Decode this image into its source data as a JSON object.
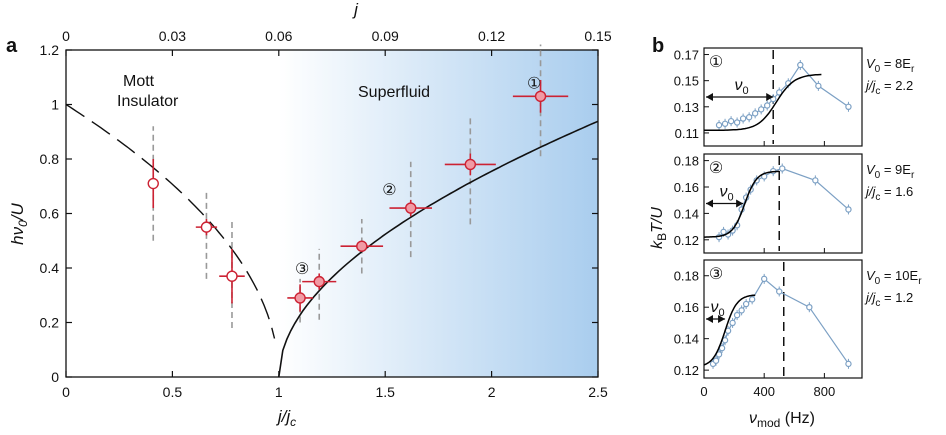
{
  "panel_a": {
    "letter": "a",
    "region_left_line1": "Mott",
    "region_left_line2": "Insulator",
    "region_right": "Superfluid",
    "chart_data": {
      "type": "scatter",
      "xlabel": "j/j",
      "xlabel_sub": "c",
      "ylabel": "hν",
      "ylabel_sub": "0",
      "ylabel_tail": "/U",
      "top_axis_label": "j",
      "xlim": [
        0,
        2.5
      ],
      "ylim": [
        0,
        1.2
      ],
      "x_ticks": [
        "0",
        "0.5",
        "1",
        "1.5",
        "2",
        "2.5"
      ],
      "y_ticks": [
        "0",
        "0.2",
        "0.4",
        "0.6",
        "0.8",
        "1",
        "1.2"
      ],
      "top_ticks": [
        "0",
        "0.03",
        "0.06",
        "0.09",
        "0.12",
        "0.15"
      ],
      "top_xlim": [
        0,
        0.15
      ],
      "mott_points": [
        {
          "x": 0.41,
          "y": 0.71,
          "xerr": 0.02,
          "yerr": 0.09,
          "range": [
            0.5,
            0.92
          ]
        },
        {
          "x": 0.66,
          "y": 0.55,
          "xerr": 0.05,
          "yerr": 0.03,
          "range": [
            0.36,
            0.69
          ]
        },
        {
          "x": 0.78,
          "y": 0.37,
          "xerr": 0.06,
          "yerr": 0.1,
          "range": [
            0.18,
            0.57
          ]
        }
      ],
      "superfluid_points": [
        {
          "x": 1.1,
          "y": 0.29,
          "xerr": 0.06,
          "yerr": 0.05,
          "range": [
            0.2,
            0.36
          ],
          "label": "③",
          "lx": 1.11,
          "ly": 0.4
        },
        {
          "x": 1.19,
          "y": 0.35,
          "xerr": 0.08,
          "yerr": 0.03,
          "range": [
            0.21,
            0.47
          ]
        },
        {
          "x": 1.39,
          "y": 0.48,
          "xerr": 0.1,
          "yerr": 0.02,
          "range": [
            0.38,
            0.58
          ]
        },
        {
          "x": 1.62,
          "y": 0.62,
          "xerr": 0.1,
          "yerr": 0.03,
          "range": [
            0.44,
            0.79
          ]
        },
        {
          "x": 1.9,
          "y": 0.78,
          "xerr": 0.12,
          "yerr": 0.04,
          "range": [
            0.56,
            0.96
          ],
          "label": "②",
          "lx": 1.52,
          "ly": 0.69
        },
        {
          "x": 2.23,
          "y": 1.03,
          "xerr": 0.13,
          "yerr": 0.06,
          "range": [
            0.81,
            1.22
          ],
          "label": "①",
          "lx": 2.2,
          "ly": 1.08
        }
      ]
    }
  },
  "panel_b": {
    "letter": "b",
    "chart_data": {
      "type": "line",
      "xlabel": "ν",
      "xlabel_sub": "mod",
      "xlabel_tail": " (Hz)",
      "ylabel": "k",
      "ylabel_sub": "B",
      "ylabel_tail": "T/U",
      "xlim": [
        0,
        1050
      ],
      "x_ticks": [
        "0",
        "400",
        "800"
      ],
      "panels": [
        {
          "marker": "①",
          "ylim": [
            0.1,
            0.175
          ],
          "y_ticks": [
            "0.11",
            "0.13",
            "0.15",
            "0.17"
          ],
          "nu_label": "ν",
          "nu_sub": "0",
          "nu0": 460,
          "param_V": "V",
          "param_V_sub": "0",
          "param_V_tail": " = 8E",
          "param_V_tail_sub": "r",
          "param_j": "j/j",
          "param_j_sub": "c",
          "param_j_tail": " = 2.2",
          "data": [
            {
              "x": 100,
              "y": 0.116
            },
            {
              "x": 140,
              "y": 0.117
            },
            {
              "x": 180,
              "y": 0.119
            },
            {
              "x": 220,
              "y": 0.118
            },
            {
              "x": 260,
              "y": 0.121
            },
            {
              "x": 300,
              "y": 0.122
            },
            {
              "x": 340,
              "y": 0.125
            },
            {
              "x": 380,
              "y": 0.128
            },
            {
              "x": 420,
              "y": 0.131
            },
            {
              "x": 460,
              "y": 0.136
            },
            {
              "x": 500,
              "y": 0.141
            },
            {
              "x": 560,
              "y": 0.148
            },
            {
              "x": 640,
              "y": 0.162
            },
            {
              "x": 760,
              "y": 0.146
            },
            {
              "x": 960,
              "y": 0.13
            }
          ],
          "fit": {
            "base": 0.112,
            "top": 0.155,
            "center": 480,
            "width": 60,
            "xmin": 0,
            "xmax": 780
          }
        },
        {
          "marker": "②",
          "ylim": [
            0.11,
            0.185
          ],
          "y_ticks": [
            "0.12",
            "0.14",
            "0.16",
            "0.18"
          ],
          "nu_label": "ν",
          "nu_sub": "0",
          "nu0": 260,
          "param_V": "V",
          "param_V_sub": "0",
          "param_V_tail": " = 9E",
          "param_V_tail_sub": "r",
          "param_j": "j/j",
          "param_j_sub": "c",
          "param_j_tail": " = 1.6",
          "data": [
            {
              "x": 100,
              "y": 0.122
            },
            {
              "x": 130,
              "y": 0.126
            },
            {
              "x": 160,
              "y": 0.124
            },
            {
              "x": 190,
              "y": 0.127
            },
            {
              "x": 220,
              "y": 0.131
            },
            {
              "x": 250,
              "y": 0.143
            },
            {
              "x": 280,
              "y": 0.152
            },
            {
              "x": 310,
              "y": 0.158
            },
            {
              "x": 350,
              "y": 0.165
            },
            {
              "x": 400,
              "y": 0.168
            },
            {
              "x": 460,
              "y": 0.172
            },
            {
              "x": 520,
              "y": 0.174
            },
            {
              "x": 740,
              "y": 0.165
            },
            {
              "x": 960,
              "y": 0.143
            }
          ],
          "fit": {
            "base": 0.122,
            "top": 0.172,
            "center": 270,
            "width": 40,
            "xmin": 0,
            "xmax": 500
          }
        },
        {
          "marker": "③",
          "ylim": [
            0.115,
            0.19
          ],
          "y_ticks": [
            "0.12",
            "0.14",
            "0.16",
            "0.18"
          ],
          "nu_label": "ν",
          "nu_sub": "0",
          "nu0": 140,
          "param_V": "V",
          "param_V_sub": "0",
          "param_V_tail": " = 10E",
          "param_V_tail_sub": "r",
          "param_j": "j/j",
          "param_j_sub": "c",
          "param_j_tail": " = 1.2",
          "data": [
            {
              "x": 60,
              "y": 0.124
            },
            {
              "x": 80,
              "y": 0.126
            },
            {
              "x": 100,
              "y": 0.13
            },
            {
              "x": 120,
              "y": 0.134
            },
            {
              "x": 140,
              "y": 0.139
            },
            {
              "x": 160,
              "y": 0.145
            },
            {
              "x": 190,
              "y": 0.15
            },
            {
              "x": 220,
              "y": 0.155
            },
            {
              "x": 250,
              "y": 0.158
            },
            {
              "x": 280,
              "y": 0.162
            },
            {
              "x": 320,
              "y": 0.165
            },
            {
              "x": 400,
              "y": 0.178
            },
            {
              "x": 500,
              "y": 0.17
            },
            {
              "x": 700,
              "y": 0.16
            },
            {
              "x": 960,
              "y": 0.124
            }
          ],
          "fit": {
            "base": 0.122,
            "top": 0.168,
            "center": 140,
            "width": 40,
            "xmin": 0,
            "xmax": 340
          }
        }
      ],
      "dashed_lines": [
        460,
        500,
        530
      ]
    }
  },
  "colors": {
    "gradient_start": "#ffffff",
    "gradient_end": "#a9cdee",
    "marker_fill": "#f19aa4",
    "marker_stroke": "#cc2233",
    "errbar": "#cc2233",
    "range": "#999999",
    "b_data": "#7ca0c4",
    "fit": "#000000"
  }
}
